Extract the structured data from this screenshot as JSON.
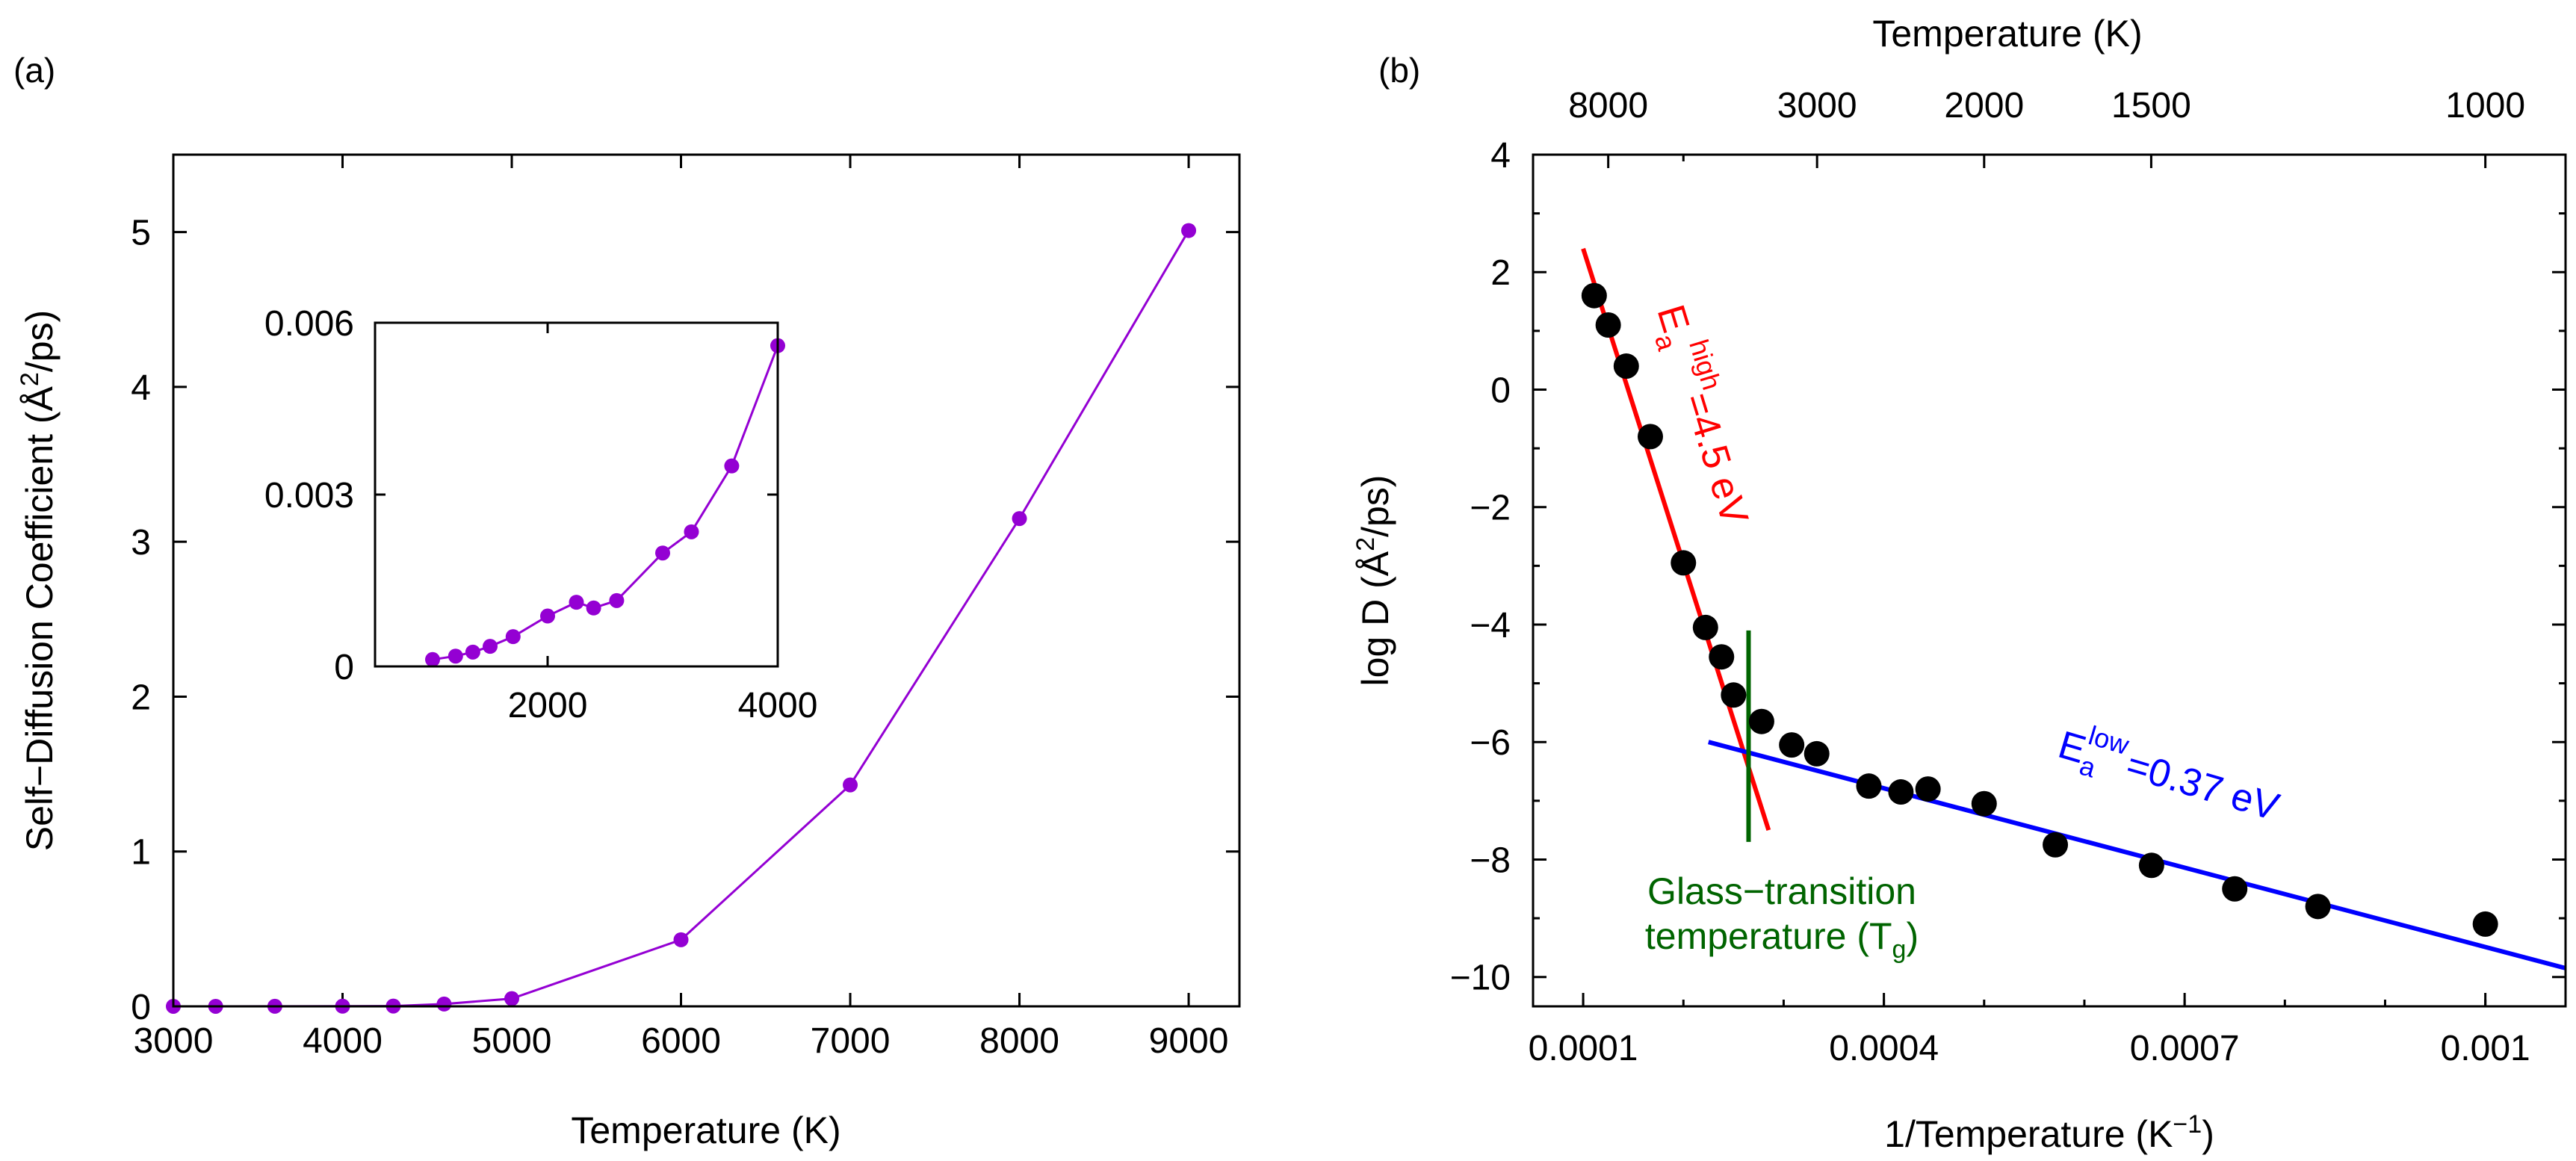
{
  "chart_data": [
    {
      "panel_label": "(a)",
      "type": "line",
      "xlabel": "Temperature (K)",
      "ylabel": "Self−Diffusion Coefficient (Å²/ps)",
      "xlim": [
        3000,
        9300
      ],
      "ylim": [
        0,
        5.5
      ],
      "xticks": [
        3000,
        4000,
        5000,
        6000,
        7000,
        8000,
        9000
      ],
      "yticks": [
        0,
        1,
        2,
        3,
        4,
        5
      ],
      "color": "#9400d3",
      "series": [
        {
          "name": "D(T)",
          "x": [
            3000,
            3250,
            3600,
            4000,
            4300,
            4600,
            5000,
            6000,
            7000,
            8000,
            9000
          ],
          "y": [
            0.0001,
            0.0002,
            0.0004,
            0.001,
            0.002,
            0.015,
            0.05,
            0.43,
            1.43,
            3.15,
            5.01
          ]
        }
      ],
      "inset": {
        "type": "line",
        "xlim": [
          500,
          4000
        ],
        "ylim": [
          0,
          0.006
        ],
        "xticks": [
          2000,
          4000
        ],
        "yticks": [
          0,
          0.003,
          0.006
        ],
        "ytick_labels": [
          "0",
          "0.003",
          "0.006"
        ],
        "series": [
          {
            "name": "D(T) low-T",
            "x": [
              1000,
              1200,
              1350,
              1500,
              1700,
              2000,
              2250,
              2400,
              2600,
              3000,
              3250,
              3600,
              4000
            ],
            "y": [
              0.00012,
              0.00018,
              0.00025,
              0.00035,
              0.00052,
              0.00088,
              0.00112,
              0.00102,
              0.00115,
              0.00198,
              0.00235,
              0.0035,
              0.0056
            ]
          }
        ]
      }
    },
    {
      "panel_label": "(b)",
      "type": "scatter",
      "xlabel": "1/Temperature (K⁻¹)",
      "ylabel": "log D (Å²/ps)",
      "top_xlabel": "Temperature (K)",
      "xlim": [
        5e-05,
        0.00108
      ],
      "ylim": [
        -10.5,
        4
      ],
      "xticks": [
        0.0001,
        0.0004,
        0.0007,
        0.001
      ],
      "xtick_labels": [
        "0.0001",
        "0.0004",
        "0.0007",
        "0.001"
      ],
      "yticks": [
        -10,
        -8,
        -6,
        -4,
        -2,
        0,
        2,
        4
      ],
      "top_xticks": [
        {
          "temperature": 8000,
          "label": "8000"
        },
        {
          "temperature": 3000,
          "label": "3000"
        },
        {
          "temperature": 2000,
          "label": "2000"
        },
        {
          "temperature": 1500,
          "label": "1500"
        },
        {
          "temperature": 1000,
          "label": "1000"
        }
      ],
      "top_minor_temperatures": [
        5000
      ],
      "series": [
        {
          "name": "log D data",
          "color": "#000000",
          "x": [
            0.000111,
            0.000125,
            0.000143,
            0.000167,
            0.0002,
            0.000222,
            0.000238,
            0.00025,
            0.000278,
            0.000308,
            0.000333,
            0.000385,
            0.000417,
            0.000444,
            0.0005,
            0.000571,
            0.000667,
            0.00075,
            0.000833,
            0.001
          ],
          "y": [
            1.6,
            1.1,
            0.4,
            -0.8,
            -2.95,
            -4.05,
            -4.55,
            -5.2,
            -5.65,
            -6.05,
            -6.2,
            -6.75,
            -6.85,
            -6.8,
            -7.05,
            -7.75,
            -8.1,
            -8.5,
            -8.8,
            -9.1
          ]
        }
      ],
      "fits": [
        {
          "name": "high-T fit",
          "color": "#ff0000",
          "x": [
            0.0001,
            0.000285
          ],
          "y": [
            2.4,
            -7.5
          ]
        },
        {
          "name": "low-T fit",
          "color": "#0000ff",
          "x": [
            0.000225,
            0.00108
          ],
          "y": [
            -6.0,
            -9.85
          ]
        }
      ],
      "tg_line": {
        "color": "#006400",
        "x": 0.000265,
        "y": [
          -4.1,
          -7.7
        ]
      },
      "annotations": {
        "high": {
          "symbol": "E",
          "sub": "a",
          "sup": "high",
          "value": "=4.5 eV",
          "color": "#ff0000"
        },
        "low": {
          "symbol": "E",
          "sub": "a",
          "sup": "low",
          "value": "=0.37 eV",
          "color": "#0000ff"
        },
        "tg": {
          "line1": "Glass−transition",
          "line2_main": "temperature (T",
          "line2_sub": "g",
          "line2_end": ")",
          "color": "#006400"
        }
      }
    }
  ]
}
